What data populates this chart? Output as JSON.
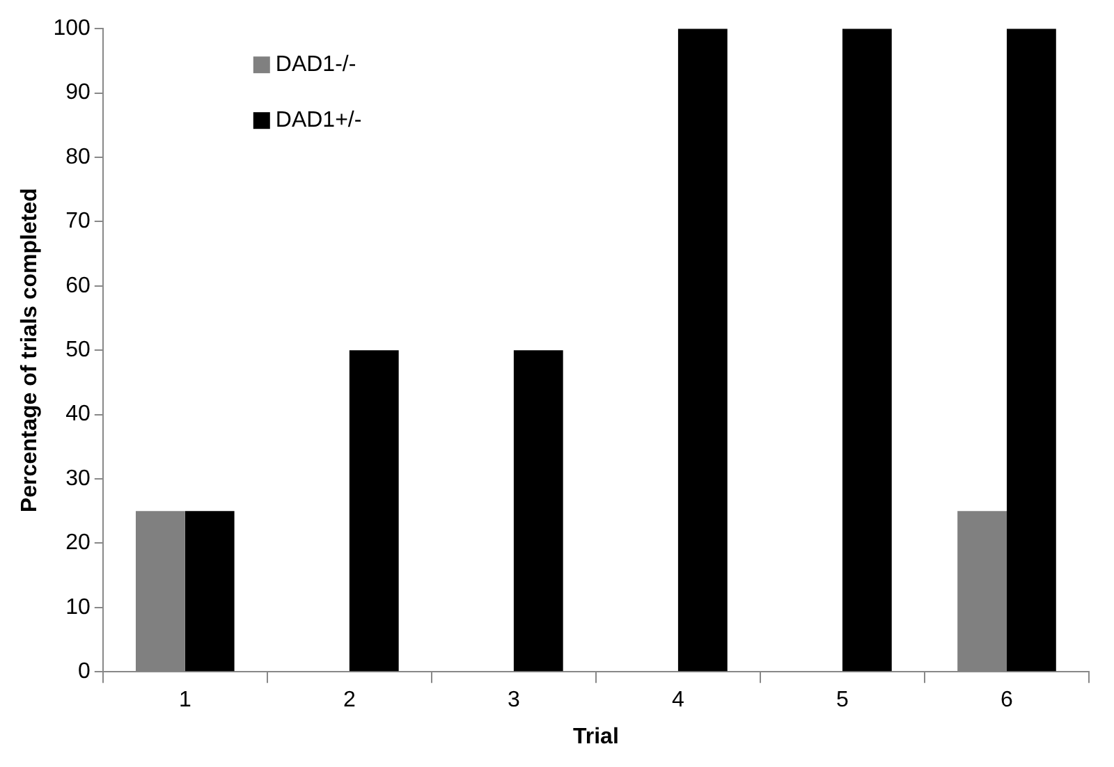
{
  "chart_data": {
    "type": "bar",
    "xlabel": "Trial",
    "ylabel": "Percentage of trials completed",
    "categories": [
      "1",
      "2",
      "3",
      "4",
      "5",
      "6"
    ],
    "series": [
      {
        "name": "DAD1-/-",
        "color": "#808080",
        "values": [
          25,
          0,
          0,
          0,
          0,
          25
        ]
      },
      {
        "name": "DAD1+/-",
        "color": "#000000",
        "values": [
          25,
          50,
          50,
          100,
          100,
          100
        ]
      }
    ],
    "ylim": [
      0,
      100
    ],
    "yticks": [
      0,
      10,
      20,
      30,
      40,
      50,
      60,
      70,
      80,
      90,
      100
    ],
    "grid": false,
    "legend": "top left"
  }
}
